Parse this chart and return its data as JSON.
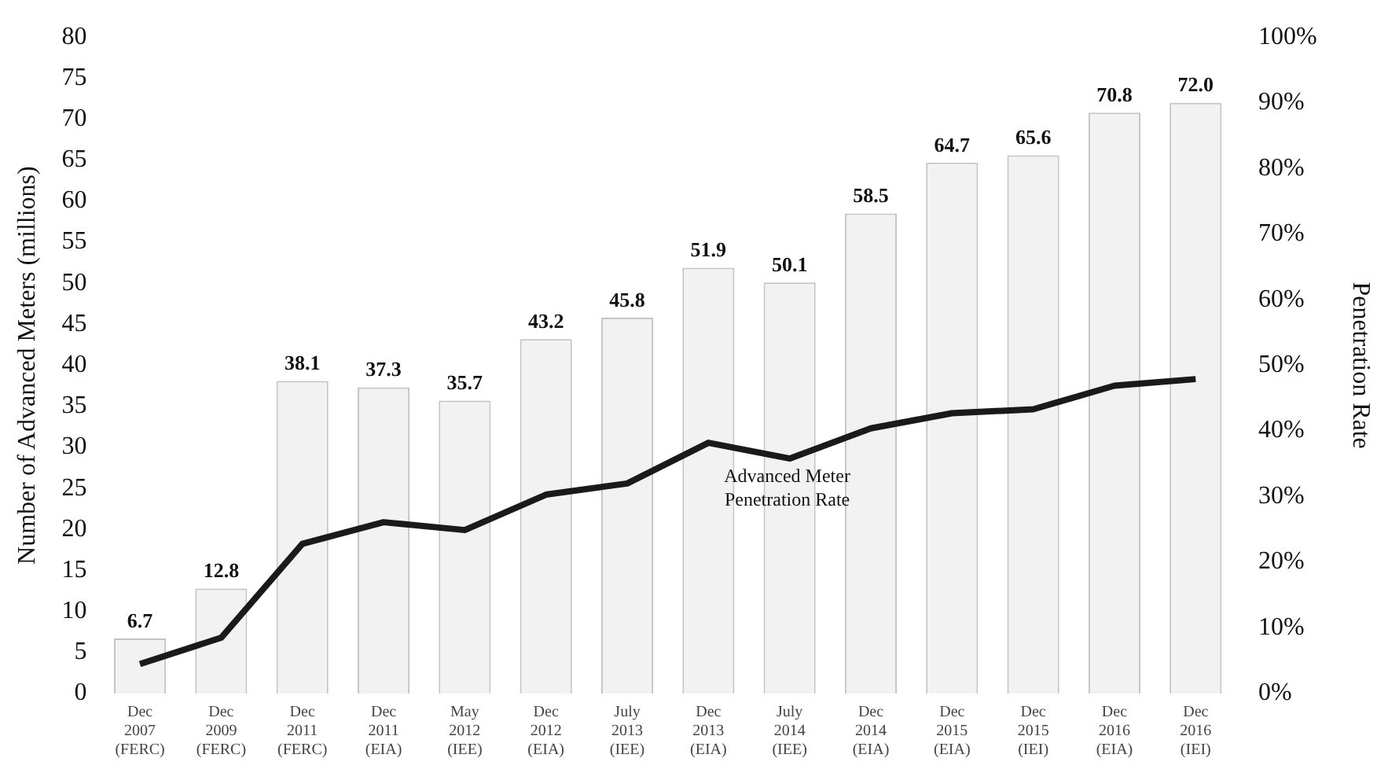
{
  "chart_data": {
    "type": "bar",
    "categories": [
      "Dec 2007 (FERC)",
      "Dec 2009 (FERC)",
      "Dec 2011 (FERC)",
      "Dec 2011 (EIA)",
      "May 2012 (IEE)",
      "Dec 2012 (EIA)",
      "July 2013 (IEE)",
      "Dec 2013 (EIA)",
      "July 2014 (IEE)",
      "Dec 2014 (EIA)",
      "Dec 2015 (EIA)",
      "Dec 2015 (IEI)",
      "Dec 2016 (EIA)",
      "Dec 2016 (IEI)"
    ],
    "series": [
      {
        "color": "#f2f2f2",
        "values": [
          6.7,
          12.8,
          38.1,
          37.3,
          35.7,
          43.2,
          45.8,
          51.9,
          50.1,
          58.5,
          64.7,
          65.6,
          70.8,
          72.0
        ],
        "value_labels": [
          "6.7",
          "12.8",
          "38.1",
          "37.3",
          "35.7",
          "43.2",
          "45.8",
          "51.9",
          "50.1",
          "58.5",
          "64.7",
          "65.6",
          "70.8",
          "72.0"
        ]
      },
      {
        "type": "line",
        "axis": "y2",
        "color": "#1a1a1a",
        "values": [
          4.5,
          8.5,
          22.8,
          26.1,
          24.9,
          30.3,
          32,
          38.2,
          35.8,
          40.4,
          42.7,
          43.3,
          46.9,
          47.9
        ]
      }
    ],
    "ylabel": "Number of Advanced Meters (millions)",
    "y2label": "Penetration Rate",
    "ylim": [
      0,
      80
    ],
    "yticks": [
      0,
      5,
      10,
      15,
      20,
      25,
      30,
      35,
      40,
      45,
      50,
      55,
      60,
      65,
      70,
      75,
      80
    ],
    "y2lim": [
      0,
      100
    ],
    "y2ticks": [
      {
        "value": 0,
        "label": "0%"
      },
      {
        "value": 10,
        "label": "10%"
      },
      {
        "value": 20,
        "label": "20%"
      },
      {
        "value": 30,
        "label": "30%"
      },
      {
        "value": 40,
        "label": "40%"
      },
      {
        "value": 50,
        "label": "50%"
      },
      {
        "value": 60,
        "label": "60%"
      },
      {
        "value": 70,
        "label": "70%"
      },
      {
        "value": 80,
        "label": "80%"
      },
      {
        "value": 90,
        "label": "90%"
      },
      {
        "value": 100,
        "label": "100%"
      }
    ],
    "annotations": [
      "Advanced Meter Penetration Rate"
    ],
    "grid": false,
    "legend": false,
    "marker": "none"
  }
}
